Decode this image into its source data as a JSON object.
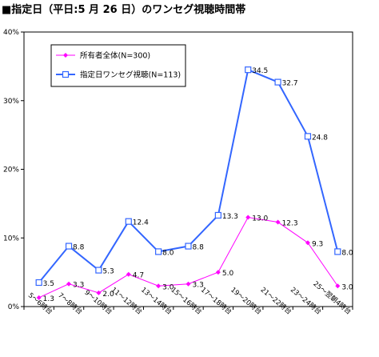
{
  "chart_data": {
    "type": "line",
    "title": "■指定日（平日:5 月 26 日）のワンセグ視聴時間帯",
    "categories": [
      "5～6時台",
      "7～8時台",
      "9～10時台",
      "11～12時台",
      "13～14時台",
      "15～16時台",
      "17～18時台",
      "19～20時台",
      "21～22時台",
      "23～24時台",
      "25～翌朝4時台"
    ],
    "y_ticks": [
      "0%",
      "10%",
      "20%",
      "30%",
      "40%"
    ],
    "ylim": [
      0,
      40
    ],
    "grid": false,
    "legend_position": "top-left",
    "series": [
      {
        "name": "所有者全体(N=300)",
        "color": "#ff00ff",
        "marker": "diamond",
        "values": [
          1.3,
          3.3,
          2.0,
          4.7,
          3.0,
          3.3,
          5.0,
          13.0,
          12.3,
          9.3,
          3.0
        ],
        "labels": [
          "1.3",
          "3.3",
          "2.0",
          "4.7",
          "3.0",
          "3.3",
          "5.0",
          "13.0",
          "12.3",
          "9.3",
          "3.0"
        ]
      },
      {
        "name": "指定日ワンセグ視聴(N=113)",
        "color": "#3366ff",
        "marker": "square",
        "values": [
          3.5,
          8.8,
          5.3,
          12.4,
          8.0,
          8.8,
          13.3,
          34.5,
          32.7,
          24.8,
          8.0
        ],
        "labels": [
          "3.5",
          "8.8",
          "5.3",
          "12.4",
          "8.0",
          "8.8",
          "13.3",
          "34.5",
          "32.7",
          "24.8",
          "8.0"
        ]
      }
    ]
  }
}
